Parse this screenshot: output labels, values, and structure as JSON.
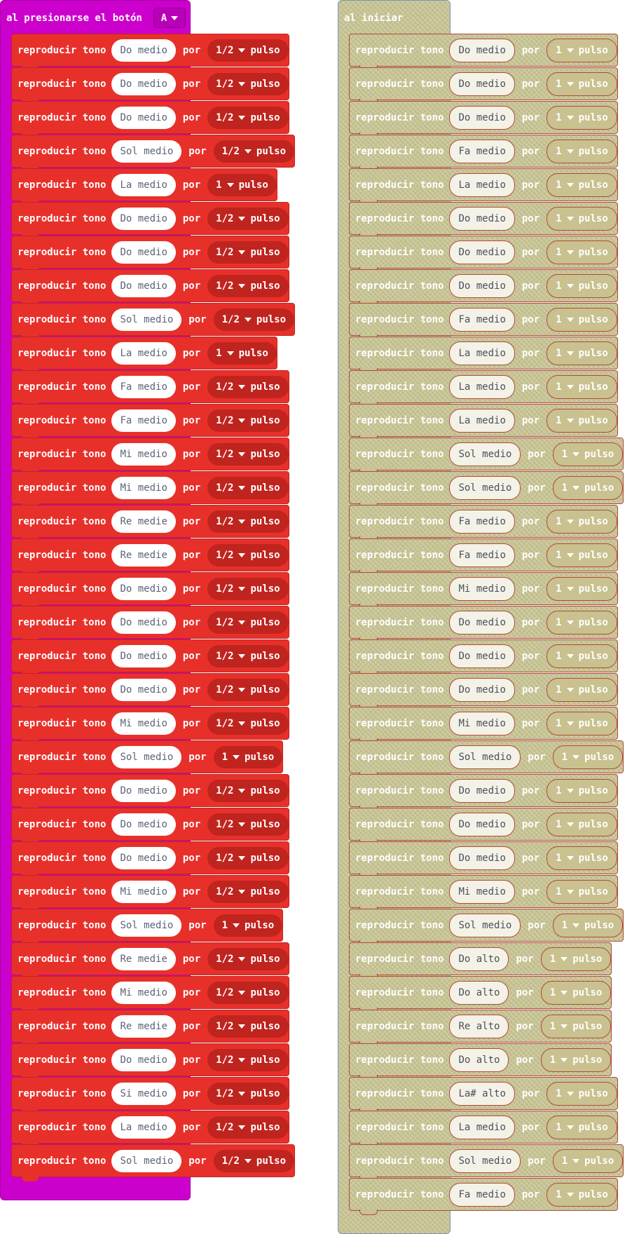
{
  "colors": {
    "button_event": "#cc00cc",
    "music_block": "#e8302b",
    "on_start_block": "#c9c18f",
    "on_start_border": "#7a96b8"
  },
  "button_event": {
    "label": "al presionarse el botón",
    "button_value": "A",
    "blocks": [
      {
        "action": "reproducir tono",
        "note": "Do medio",
        "por": "por",
        "beat": "1/2",
        "unit": "pulso"
      },
      {
        "action": "reproducir tono",
        "note": "Do medio",
        "por": "por",
        "beat": "1/2",
        "unit": "pulso"
      },
      {
        "action": "reproducir tono",
        "note": "Do medio",
        "por": "por",
        "beat": "1/2",
        "unit": "pulso"
      },
      {
        "action": "reproducir tono",
        "note": "Sol medio",
        "por": "por",
        "beat": "1/2",
        "unit": "pulso"
      },
      {
        "action": "reproducir tono",
        "note": "La medio",
        "por": "por",
        "beat": "1",
        "unit": "pulso"
      },
      {
        "action": "reproducir tono",
        "note": "Do medio",
        "por": "por",
        "beat": "1/2",
        "unit": "pulso"
      },
      {
        "action": "reproducir tono",
        "note": "Do medio",
        "por": "por",
        "beat": "1/2",
        "unit": "pulso"
      },
      {
        "action": "reproducir tono",
        "note": "Do medio",
        "por": "por",
        "beat": "1/2",
        "unit": "pulso"
      },
      {
        "action": "reproducir tono",
        "note": "Sol medio",
        "por": "por",
        "beat": "1/2",
        "unit": "pulso"
      },
      {
        "action": "reproducir tono",
        "note": "La medio",
        "por": "por",
        "beat": "1",
        "unit": "pulso"
      },
      {
        "action": "reproducir tono",
        "note": "Fa medio",
        "por": "por",
        "beat": "1/2",
        "unit": "pulso"
      },
      {
        "action": "reproducir tono",
        "note": "Fa medio",
        "por": "por",
        "beat": "1/2",
        "unit": "pulso"
      },
      {
        "action": "reproducir tono",
        "note": "Mi medio",
        "por": "por",
        "beat": "1/2",
        "unit": "pulso"
      },
      {
        "action": "reproducir tono",
        "note": "Mi medio",
        "por": "por",
        "beat": "1/2",
        "unit": "pulso"
      },
      {
        "action": "reproducir tono",
        "note": "Re medie",
        "por": "por",
        "beat": "1/2",
        "unit": "pulso"
      },
      {
        "action": "reproducir tono",
        "note": "Re medie",
        "por": "por",
        "beat": "1/2",
        "unit": "pulso"
      },
      {
        "action": "reproducir tono",
        "note": "Do medio",
        "por": "por",
        "beat": "1/2",
        "unit": "pulso"
      },
      {
        "action": "reproducir tono",
        "note": "Do medio",
        "por": "por",
        "beat": "1/2",
        "unit": "pulso"
      },
      {
        "action": "reproducir tono",
        "note": "Do medio",
        "por": "por",
        "beat": "1/2",
        "unit": "pulso"
      },
      {
        "action": "reproducir tono",
        "note": "Do medio",
        "por": "por",
        "beat": "1/2",
        "unit": "pulso"
      },
      {
        "action": "reproducir tono",
        "note": "Mi medio",
        "por": "por",
        "beat": "1/2",
        "unit": "pulso"
      },
      {
        "action": "reproducir tono",
        "note": "Sol medio",
        "por": "por",
        "beat": "1",
        "unit": "pulso"
      },
      {
        "action": "reproducir tono",
        "note": "Do medio",
        "por": "por",
        "beat": "1/2",
        "unit": "pulso"
      },
      {
        "action": "reproducir tono",
        "note": "Do medio",
        "por": "por",
        "beat": "1/2",
        "unit": "pulso"
      },
      {
        "action": "reproducir tono",
        "note": "Do medio",
        "por": "por",
        "beat": "1/2",
        "unit": "pulso"
      },
      {
        "action": "reproducir tono",
        "note": "Mi medio",
        "por": "por",
        "beat": "1/2",
        "unit": "pulso"
      },
      {
        "action": "reproducir tono",
        "note": "Sol medio",
        "por": "por",
        "beat": "1",
        "unit": "pulso"
      },
      {
        "action": "reproducir tono",
        "note": "Re medie",
        "por": "por",
        "beat": "1/2",
        "unit": "pulso"
      },
      {
        "action": "reproducir tono",
        "note": "Mi medio",
        "por": "por",
        "beat": "1/2",
        "unit": "pulso"
      },
      {
        "action": "reproducir tono",
        "note": "Re medie",
        "por": "por",
        "beat": "1/2",
        "unit": "pulso"
      },
      {
        "action": "reproducir tono",
        "note": "Do medio",
        "por": "por",
        "beat": "1/2",
        "unit": "pulso"
      },
      {
        "action": "reproducir tono",
        "note": "Si medio",
        "por": "por",
        "beat": "1/2",
        "unit": "pulso"
      },
      {
        "action": "reproducir tono",
        "note": "La medio",
        "por": "por",
        "beat": "1/2",
        "unit": "pulso"
      },
      {
        "action": "reproducir tono",
        "note": "Sol medio",
        "por": "por",
        "beat": "1/2",
        "unit": "pulso"
      }
    ]
  },
  "on_start": {
    "label": "al iniciar",
    "blocks": [
      {
        "action": "reproducir tono",
        "note": "Do medio",
        "por": "por",
        "beat": "1",
        "unit": "pulso"
      },
      {
        "action": "reproducir tono",
        "note": "Do medio",
        "por": "por",
        "beat": "1",
        "unit": "pulso"
      },
      {
        "action": "reproducir tono",
        "note": "Do medio",
        "por": "por",
        "beat": "1",
        "unit": "pulso"
      },
      {
        "action": "reproducir tono",
        "note": "Fa medio",
        "por": "por",
        "beat": "1",
        "unit": "pulso"
      },
      {
        "action": "reproducir tono",
        "note": "La medio",
        "por": "por",
        "beat": "1",
        "unit": "pulso"
      },
      {
        "action": "reproducir tono",
        "note": "Do medio",
        "por": "por",
        "beat": "1",
        "unit": "pulso"
      },
      {
        "action": "reproducir tono",
        "note": "Do medio",
        "por": "por",
        "beat": "1",
        "unit": "pulso"
      },
      {
        "action": "reproducir tono",
        "note": "Do medio",
        "por": "por",
        "beat": "1",
        "unit": "pulso"
      },
      {
        "action": "reproducir tono",
        "note": "Fa medio",
        "por": "por",
        "beat": "1",
        "unit": "pulso"
      },
      {
        "action": "reproducir tono",
        "note": "La medio",
        "por": "por",
        "beat": "1",
        "unit": "pulso"
      },
      {
        "action": "reproducir tono",
        "note": "La medio",
        "por": "por",
        "beat": "1",
        "unit": "pulso"
      },
      {
        "action": "reproducir tono",
        "note": "La medio",
        "por": "por",
        "beat": "1",
        "unit": "pulso"
      },
      {
        "action": "reproducir tono",
        "note": "Sol medio",
        "por": "por",
        "beat": "1",
        "unit": "pulso"
      },
      {
        "action": "reproducir tono",
        "note": "Sol medio",
        "por": "por",
        "beat": "1",
        "unit": "pulso"
      },
      {
        "action": "reproducir tono",
        "note": "Fa medio",
        "por": "por",
        "beat": "1",
        "unit": "pulso"
      },
      {
        "action": "reproducir tono",
        "note": "Fa medio",
        "por": "por",
        "beat": "1",
        "unit": "pulso"
      },
      {
        "action": "reproducir tono",
        "note": "Mi medio",
        "por": "por",
        "beat": "1",
        "unit": "pulso"
      },
      {
        "action": "reproducir tono",
        "note": "Do medio",
        "por": "por",
        "beat": "1",
        "unit": "pulso"
      },
      {
        "action": "reproducir tono",
        "note": "Do medio",
        "por": "por",
        "beat": "1",
        "unit": "pulso"
      },
      {
        "action": "reproducir tono",
        "note": "Do medio",
        "por": "por",
        "beat": "1",
        "unit": "pulso"
      },
      {
        "action": "reproducir tono",
        "note": "Mi medio",
        "por": "por",
        "beat": "1",
        "unit": "pulso"
      },
      {
        "action": "reproducir tono",
        "note": "Sol medio",
        "por": "por",
        "beat": "1",
        "unit": "pulso"
      },
      {
        "action": "reproducir tono",
        "note": "Do medio",
        "por": "por",
        "beat": "1",
        "unit": "pulso"
      },
      {
        "action": "reproducir tono",
        "note": "Do medio",
        "por": "por",
        "beat": "1",
        "unit": "pulso"
      },
      {
        "action": "reproducir tono",
        "note": "Do medio",
        "por": "por",
        "beat": "1",
        "unit": "pulso"
      },
      {
        "action": "reproducir tono",
        "note": "Mi medio",
        "por": "por",
        "beat": "1",
        "unit": "pulso"
      },
      {
        "action": "reproducir tono",
        "note": "Sol medio",
        "por": "por",
        "beat": "1",
        "unit": "pulso"
      },
      {
        "action": "reproducir tono",
        "note": "Do alto",
        "por": "por",
        "beat": "1",
        "unit": "pulso"
      },
      {
        "action": "reproducir tono",
        "note": "Do alto",
        "por": "por",
        "beat": "1",
        "unit": "pulso"
      },
      {
        "action": "reproducir tono",
        "note": "Re alto",
        "por": "por",
        "beat": "1",
        "unit": "pulso"
      },
      {
        "action": "reproducir tono",
        "note": "Do alto",
        "por": "por",
        "beat": "1",
        "unit": "pulso"
      },
      {
        "action": "reproducir tono",
        "note": "La# alto",
        "por": "por",
        "beat": "1",
        "unit": "pulso"
      },
      {
        "action": "reproducir tono",
        "note": "La medio",
        "por": "por",
        "beat": "1",
        "unit": "pulso"
      },
      {
        "action": "reproducir tono",
        "note": "Sol medio",
        "por": "por",
        "beat": "1",
        "unit": "pulso"
      },
      {
        "action": "reproducir tono",
        "note": "Fa medio",
        "por": "por",
        "beat": "1",
        "unit": "pulso"
      }
    ]
  }
}
